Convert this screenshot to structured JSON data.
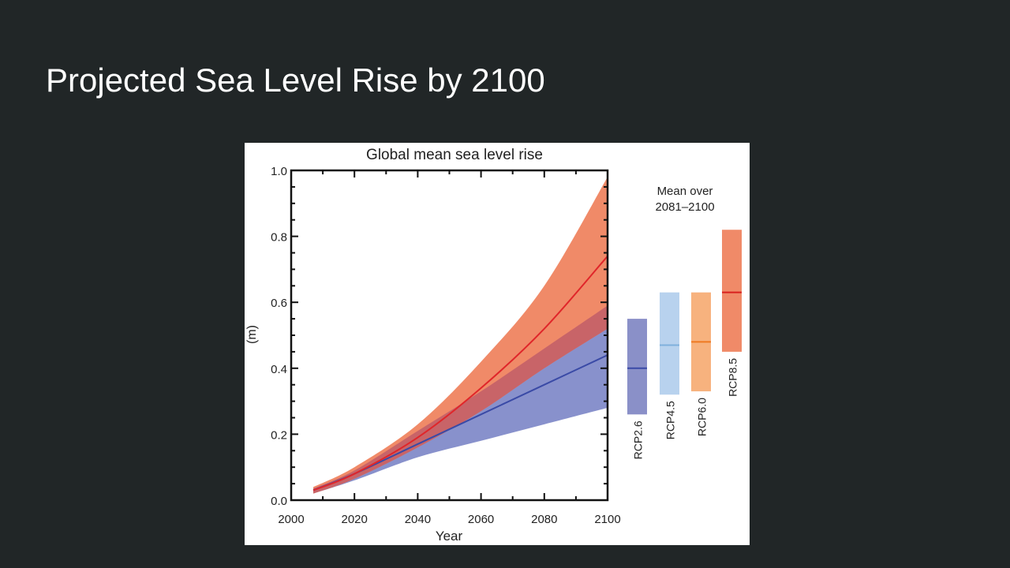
{
  "slide": {
    "title": "Projected Sea Level Rise by 2100"
  },
  "chart_data": {
    "type": "area",
    "title": "Global mean sea level rise",
    "xlabel": "Year",
    "ylabel": "(m)",
    "xlim": [
      2000,
      2100
    ],
    "ylim": [
      0.0,
      1.0
    ],
    "xticks": [
      "2000",
      "2020",
      "2040",
      "2060",
      "2080",
      "2100"
    ],
    "yticks": [
      "0.0",
      "0.2",
      "0.4",
      "0.6",
      "0.8",
      "1.0"
    ],
    "grid": false,
    "series": [
      {
        "key": "rcp26",
        "color": "#3a4aa6",
        "band_color": "#8891cc",
        "x": [
          2007,
          2020,
          2040,
          2060,
          2080,
          2100
        ],
        "mean": [
          0.03,
          0.08,
          0.17,
          0.26,
          0.35,
          0.44
        ],
        "upper": [
          0.035,
          0.09,
          0.21,
          0.33,
          0.46,
          0.59
        ],
        "lower": [
          0.02,
          0.06,
          0.13,
          0.18,
          0.23,
          0.28
        ]
      },
      {
        "key": "rcp85",
        "color": "#e0262a",
        "band_color": "#f08a68",
        "x": [
          2007,
          2020,
          2040,
          2060,
          2080,
          2100
        ],
        "mean": [
          0.03,
          0.08,
          0.19,
          0.34,
          0.52,
          0.74
        ],
        "upper": [
          0.04,
          0.1,
          0.23,
          0.42,
          0.65,
          0.98
        ],
        "lower": [
          0.02,
          0.065,
          0.16,
          0.27,
          0.4,
          0.52
        ]
      }
    ],
    "overlap_color": "#c86468",
    "side_panel": {
      "title_line1": "Mean over",
      "title_line2": "2081–2100",
      "bars": [
        {
          "label": "RCP2.6",
          "mean": 0.4,
          "low": 0.26,
          "high": 0.55,
          "fill": "#8a90c8",
          "line": "#3a4aa6"
        },
        {
          "label": "RCP4.5",
          "mean": 0.47,
          "low": 0.32,
          "high": 0.63,
          "fill": "#b8d2ee",
          "line": "#7fb0dc"
        },
        {
          "label": "RCP6.0",
          "mean": 0.48,
          "low": 0.33,
          "high": 0.63,
          "fill": "#f7b27e",
          "line": "#ee7a22"
        },
        {
          "label": "RCP8.5",
          "mean": 0.63,
          "low": 0.45,
          "high": 0.82,
          "fill": "#f08a68",
          "line": "#d8201e"
        }
      ]
    }
  }
}
